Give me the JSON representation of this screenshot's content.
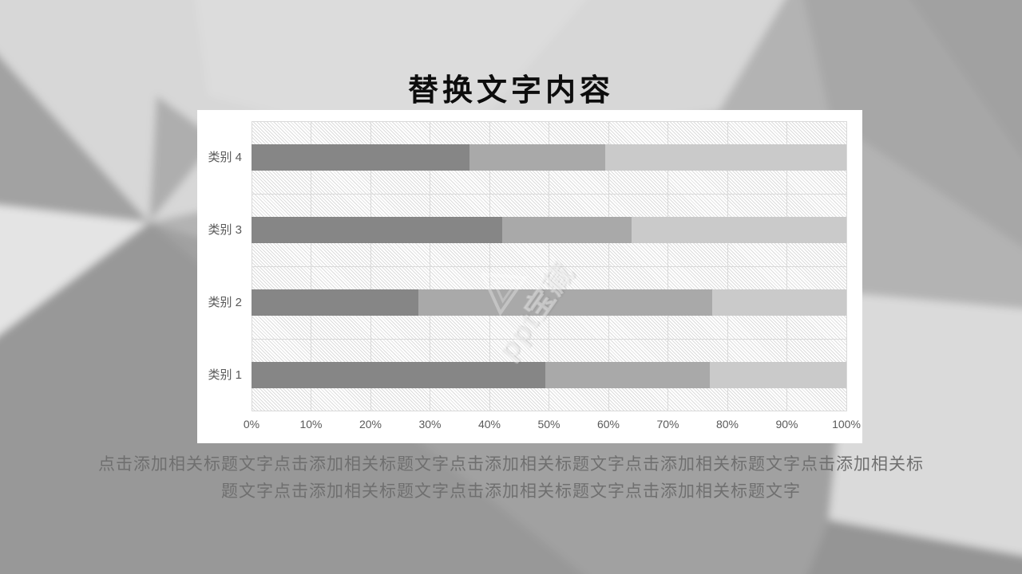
{
  "slide": {
    "title": "替换文字内容",
    "caption_lines": [
      "点击添加相关标题文字点击添加相关标题文字点击添加相关标题文字点击添加相关标题文字点击添加相关标",
      "题文字点击添加相关标题文字点击添加相关标题文字点击添加相关标题文字"
    ]
  },
  "watermark": {
    "text": "ppt宝藏"
  },
  "colors": {
    "series": [
      "#868686",
      "#a9a9a9",
      "#cacaca"
    ],
    "gridline": "#d9d9d9",
    "axis_text": "#595959",
    "title_text": "#0d0d0d",
    "caption_text": "#6f6f6f",
    "card_background": "#ffffff"
  },
  "chart_data": {
    "type": "bar",
    "subtype": "horizontal-100-percent-stacked",
    "title": "",
    "categories_top_to_bottom": [
      "类别 4",
      "类别 3",
      "类别 2",
      "类别 1"
    ],
    "series": [
      {
        "name": "segment-dark",
        "color": "#868686",
        "values_pct": [
          36.6,
          42.2,
          28.1,
          49.4
        ]
      },
      {
        "name": "segment-medium",
        "color": "#a9a9a9",
        "values_pct": [
          22.8,
          21.7,
          49.4,
          27.6
        ]
      },
      {
        "name": "segment-light",
        "color": "#cacaca",
        "values_pct": [
          40.6,
          36.1,
          22.5,
          23.0
        ]
      }
    ],
    "x_axis": {
      "min": 0,
      "max": 100,
      "tick_step": 10,
      "tick_labels": [
        "0%",
        "10%",
        "20%",
        "30%",
        "40%",
        "50%",
        "60%",
        "70%",
        "80%",
        "90%",
        "100%"
      ]
    },
    "layout": {
      "grid": true,
      "plot_area_fill": "diagonal-hatch",
      "legend": "none"
    }
  }
}
